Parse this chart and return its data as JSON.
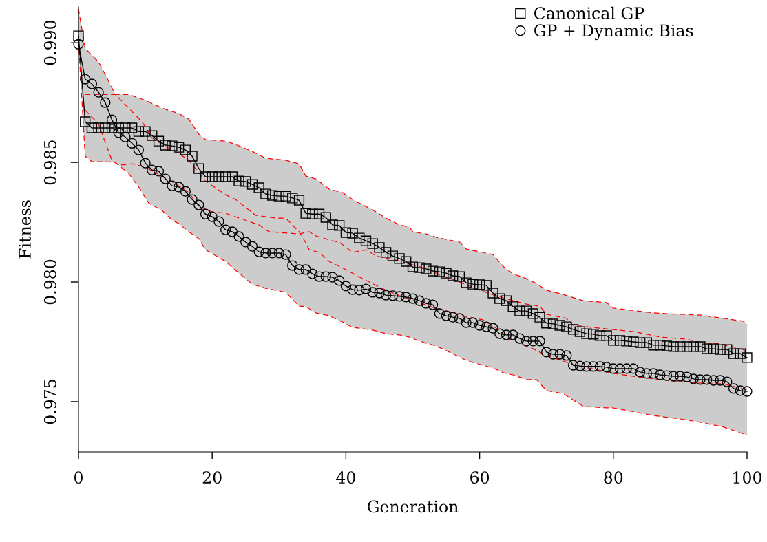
{
  "chart_data": {
    "type": "line",
    "xlabel": "Generation",
    "ylabel": "Fitness",
    "xlim": [
      0,
      100
    ],
    "ylim": [
      0.9729,
      0.9915
    ],
    "xticks": [
      0,
      20,
      40,
      60,
      80,
      100
    ],
    "yticks": [
      {
        "value": 0.975,
        "label": "0.975"
      },
      {
        "value": 0.98,
        "label": "0.980"
      },
      {
        "value": 0.985,
        "label": "0.985"
      },
      {
        "value": 0.99,
        "label": "0.990"
      }
    ],
    "grid": false,
    "legend": "top right",
    "x": [
      0,
      1,
      2,
      3,
      4,
      5,
      6,
      7,
      8,
      9,
      10,
      11,
      12,
      13,
      14,
      15,
      16,
      17,
      18,
      19,
      20,
      21,
      22,
      23,
      24,
      25,
      26,
      27,
      28,
      29,
      30,
      31,
      32,
      33,
      34,
      35,
      36,
      37,
      38,
      39,
      40,
      41,
      42,
      43,
      44,
      45,
      46,
      47,
      48,
      49,
      50,
      51,
      52,
      53,
      54,
      55,
      56,
      57,
      58,
      59,
      60,
      61,
      62,
      63,
      64,
      65,
      66,
      67,
      68,
      69,
      70,
      71,
      72,
      73,
      74,
      75,
      76,
      77,
      78,
      79,
      80,
      81,
      82,
      83,
      84,
      85,
      86,
      87,
      88,
      89,
      90,
      91,
      92,
      93,
      94,
      95,
      96,
      97,
      98,
      99,
      100
    ],
    "series": [
      {
        "color": "#ff0000",
        "line_style": "dashed",
        "marker": "none",
        "x": [
          0,
          1,
          2,
          3,
          4,
          5.5,
          7.5,
          9,
          10.5,
          12.5,
          14,
          15,
          16.5,
          18,
          19,
          22,
          23.5,
          26,
          28,
          31,
          33,
          34,
          35.5,
          37.5,
          39.5,
          41,
          42,
          44,
          46,
          48,
          49.5,
          50,
          52,
          53.5,
          57,
          58,
          60.5,
          62,
          63.5,
          65,
          67,
          68.5,
          70,
          72.5,
          75.5,
          79,
          80,
          86,
          90,
          93,
          96.5,
          99.5,
          100
        ],
        "lower": [
          0.99006,
          0.98526,
          0.98503,
          0.98503,
          0.98503,
          0.985,
          0.98454,
          0.98397,
          0.9833,
          0.98299,
          0.98259,
          0.98244,
          0.9821,
          0.98181,
          0.98135,
          0.98086,
          0.98049,
          0.97991,
          0.97974,
          0.97957,
          0.97899,
          0.97897,
          0.97871,
          0.97859,
          0.97833,
          0.9781,
          0.97807,
          0.97799,
          0.97784,
          0.97779,
          0.9777,
          0.97764,
          0.97744,
          0.97733,
          0.97687,
          0.97672,
          0.97652,
          0.97641,
          0.97621,
          0.97612,
          0.97592,
          0.97592,
          0.97546,
          0.97534,
          0.9748,
          0.97474,
          0.97474,
          0.97442,
          0.97428,
          0.97414,
          0.97394,
          0.97365,
          0.97362
        ],
        "upper": [
          0.99141,
          0.98977,
          0.98948,
          0.9892,
          0.98868,
          0.98784,
          0.98784,
          0.9877,
          0.98753,
          0.98727,
          0.98713,
          0.98704,
          0.98681,
          0.98618,
          0.98595,
          0.98589,
          0.98575,
          0.98546,
          0.98517,
          0.98509,
          0.98494,
          0.98443,
          0.98431,
          0.98388,
          0.98374,
          0.98345,
          0.9833,
          0.98302,
          0.98267,
          0.98239,
          0.9823,
          0.9821,
          0.98201,
          0.98187,
          0.98167,
          0.98138,
          0.98124,
          0.98115,
          0.98066,
          0.98034,
          0.98014,
          0.97994,
          0.97966,
          0.97948,
          0.97922,
          0.97914,
          0.97891,
          0.97871,
          0.97865,
          0.97862,
          0.97848,
          0.97836,
          0.97822
        ],
        "values": [
          0.99141,
          0.98977,
          0.98948,
          0.9892,
          0.98868,
          0.98784,
          0.98784,
          0.9877,
          0.98753,
          0.98727,
          0.98713,
          0.98704,
          0.98681,
          0.98618,
          0.98595,
          0.98589,
          0.98575,
          0.98546,
          0.98517,
          0.98509,
          0.98494,
          0.98443,
          0.98431,
          0.98388,
          0.98374,
          0.98345,
          0.9833,
          0.98302,
          0.98267,
          0.98239,
          0.9823,
          0.9821,
          0.98201,
          0.98187,
          0.98167,
          0.98138,
          0.98124,
          0.98115,
          0.98066,
          0.98034,
          0.98014,
          0.97994,
          0.97966,
          0.97948,
          0.97922,
          0.97914,
          0.97891,
          0.97871,
          0.97865,
          0.97862,
          0.97848,
          0.97836,
          0.97822
        ]
      },
      {
        "color": "#ff0000",
        "line_style": "dashed",
        "marker": "none",
        "x": [
          0,
          1,
          2,
          3,
          4,
          5.5,
          7.5,
          9,
          10.5,
          12.5,
          14,
          15,
          16.5,
          18,
          19,
          22,
          23.5,
          26,
          28,
          31,
          33,
          34,
          35.5,
          37.5,
          39.5,
          41,
          42,
          44,
          46,
          48,
          49.5,
          50,
          52,
          53.5,
          57,
          58,
          60.5,
          62,
          63.5,
          65,
          67,
          68.5,
          70,
          72.5,
          75.5,
          79,
          80,
          86,
          90,
          93,
          96.5,
          99.5,
          100
        ],
        "values": [
          0.99006,
          0.98526,
          0.98503,
          0.98503,
          0.98503,
          0.985,
          0.98454,
          0.98397,
          0.9833,
          0.98299,
          0.98259,
          0.98244,
          0.9821,
          0.98181,
          0.98135,
          0.98086,
          0.98049,
          0.97991,
          0.97974,
          0.97957,
          0.97899,
          0.97897,
          0.97871,
          0.97859,
          0.97833,
          0.9781,
          0.97807,
          0.97799,
          0.97784,
          0.97779,
          0.9777,
          0.97764,
          0.97744,
          0.97733,
          0.97687,
          0.97672,
          0.97652,
          0.97641,
          0.97621,
          0.97612,
          0.97592,
          0.97592,
          0.97546,
          0.97534,
          0.9748,
          0.97474,
          0.97474,
          0.97442,
          0.97428,
          0.97414,
          0.97394,
          0.97365,
          0.97362
        ]
      },
      {
        "color": "#ff0000",
        "line_style": "dashed",
        "marker": "none",
        "x": [
          1,
          2,
          5.5,
          6,
          7.5,
          9.5,
          11,
          13,
          14,
          16.5,
          19,
          22,
          23.5,
          26.5,
          29.5,
          31,
          33,
          34,
          34.5,
          36,
          37.5,
          40,
          41.5,
          43.5,
          46,
          48,
          51,
          53,
          55.5,
          58,
          60.5,
          62.5,
          64.5,
          68,
          70,
          74,
          80,
          83,
          87,
          92.5,
          96.5,
          100
        ],
        "values": [
          0.98784,
          0.98784,
          0.98784,
          0.9877,
          0.98727,
          0.9867,
          0.98603,
          0.98566,
          0.98555,
          0.98509,
          0.98422,
          0.98365,
          0.98345,
          0.98279,
          0.98267,
          0.98267,
          0.9821,
          0.98164,
          0.98135,
          0.98124,
          0.98086,
          0.98052,
          0.98029,
          0.98,
          0.97966,
          0.97943,
          0.97914,
          0.97894,
          0.97876,
          0.97856,
          0.97842,
          0.97807,
          0.97761,
          0.97721,
          0.97693,
          0.97655,
          0.97618,
          0.97606,
          0.97592,
          0.97578,
          0.97575,
          0.97549
        ]
      },
      {
        "color": "#ff0000",
        "line_style": "dashed",
        "marker": "none",
        "x": [
          1,
          3,
          4,
          5,
          6,
          8,
          10,
          14.5,
          16.5,
          18,
          20,
          22,
          27,
          28.5,
          33,
          34.5,
          35.5,
          38,
          39,
          41,
          43,
          44.5,
          47,
          50,
          52.5,
          54,
          56.5,
          59,
          61.5,
          63.5,
          67,
          69,
          70,
          73,
          74,
          78,
          83,
          87,
          91,
          93,
          96,
          99,
          100
        ],
        "values": [
          0.98718,
          0.98661,
          0.98583,
          0.98509,
          0.98488,
          0.98494,
          0.9848,
          0.98411,
          0.98374,
          0.98316,
          0.98293,
          0.98287,
          0.98239,
          0.9821,
          0.98201,
          0.9821,
          0.98193,
          0.98172,
          0.98167,
          0.98124,
          0.98135,
          0.98109,
          0.98095,
          0.98072,
          0.98052,
          0.98029,
          0.98006,
          0.97977,
          0.97951,
          0.97934,
          0.97908,
          0.97899,
          0.97865,
          0.97848,
          0.97819,
          0.97807,
          0.97793,
          0.9777,
          0.97761,
          0.97747,
          0.97741,
          0.97721,
          0.97713
        ]
      },
      {
        "name": "Canonical GP",
        "color": "#000000",
        "marker": "square",
        "values": [
          0.99029,
          0.9867,
          0.98644,
          0.98644,
          0.98644,
          0.98644,
          0.98644,
          0.98644,
          0.98644,
          0.98629,
          0.98629,
          0.98612,
          0.98589,
          0.98572,
          0.98569,
          0.98563,
          0.98552,
          0.98526,
          0.98474,
          0.9844,
          0.9844,
          0.9844,
          0.9844,
          0.9844,
          0.98422,
          0.9842,
          0.98408,
          0.98394,
          0.98368,
          0.98362,
          0.98359,
          0.98359,
          0.98351,
          0.98342,
          0.98287,
          0.98284,
          0.98284,
          0.9827,
          0.98239,
          0.98236,
          0.98207,
          0.98204,
          0.98184,
          0.98172,
          0.98161,
          0.98144,
          0.98124,
          0.98109,
          0.98098,
          0.98086,
          0.98063,
          0.9806,
          0.98055,
          0.98046,
          0.98043,
          0.98037,
          0.98026,
          0.98023,
          0.97997,
          0.97991,
          0.97989,
          0.97986,
          0.97954,
          0.97931,
          0.97922,
          0.97897,
          0.97879,
          0.97879,
          0.97868,
          0.97853,
          0.97828,
          0.97825,
          0.97819,
          0.97813,
          0.97802,
          0.97793,
          0.97784,
          0.97782,
          0.97776,
          0.97776,
          0.97756,
          0.97756,
          0.97753,
          0.9775,
          0.97747,
          0.97747,
          0.97736,
          0.97736,
          0.97733,
          0.9773,
          0.9773,
          0.9773,
          0.9773,
          0.9773,
          0.97721,
          0.97721,
          0.97718,
          0.97718,
          0.97701,
          0.97701,
          0.97684
        ]
      },
      {
        "name": "GP + Dynamic Bias",
        "color": "#000000",
        "marker": "circle",
        "values": [
          0.98994,
          0.98848,
          0.98828,
          0.98793,
          0.9875,
          0.98678,
          0.98624,
          0.98606,
          0.9858,
          0.98552,
          0.98497,
          0.98468,
          0.98463,
          0.98431,
          0.98402,
          0.98397,
          0.98379,
          0.98345,
          0.98322,
          0.98284,
          0.98273,
          0.98253,
          0.98218,
          0.9821,
          0.9819,
          0.98167,
          0.98149,
          0.98126,
          0.98121,
          0.98121,
          0.98121,
          0.98115,
          0.98069,
          0.98052,
          0.98052,
          0.98034,
          0.98023,
          0.98023,
          0.9802,
          0.98006,
          0.97983,
          0.97968,
          0.97966,
          0.97971,
          0.97957,
          0.97954,
          0.97945,
          0.97943,
          0.9794,
          0.97937,
          0.97931,
          0.97922,
          0.97911,
          0.97905,
          0.97868,
          0.97859,
          0.97853,
          0.97848,
          0.9783,
          0.9783,
          0.97819,
          0.97813,
          0.97807,
          0.97784,
          0.97779,
          0.97779,
          0.97764,
          0.97753,
          0.97753,
          0.97753,
          0.97707,
          0.97698,
          0.97698,
          0.97693,
          0.97652,
          0.97649,
          0.97647,
          0.97647,
          0.97647,
          0.97644,
          0.97638,
          0.97638,
          0.97638,
          0.97638,
          0.97624,
          0.97618,
          0.97618,
          0.97612,
          0.97609,
          0.97606,
          0.97606,
          0.97603,
          0.97595,
          0.97592,
          0.97592,
          0.97589,
          0.97589,
          0.97583,
          0.97555,
          0.97546,
          0.97543
        ]
      }
    ]
  }
}
